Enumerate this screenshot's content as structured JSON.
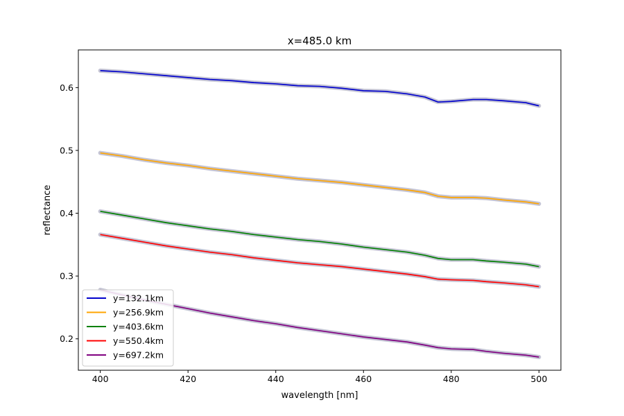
{
  "chart_data": {
    "type": "line",
    "title": "x=485.0 km",
    "xlabel": "wavelength [nm]",
    "ylabel": "reflectance",
    "xlim": [
      395,
      505
    ],
    "ylim": [
      0.15,
      0.66
    ],
    "xticks": [
      400,
      420,
      440,
      460,
      480,
      500
    ],
    "xtick_labels": [
      "400",
      "420",
      "440",
      "460",
      "480",
      "500"
    ],
    "yticks": [
      0.2,
      0.3,
      0.4,
      0.5,
      0.6
    ],
    "ytick_labels": [
      "0.2",
      "0.3",
      "0.4",
      "0.5",
      "0.6"
    ],
    "grid": false,
    "legend_position": "lower-left",
    "uncertainty_band_color": "#c4c4d4",
    "series": [
      {
        "name": "y=132.1km",
        "color": "#0000cc",
        "x": [
          400,
          405,
          410,
          415,
          420,
          425,
          430,
          435,
          440,
          445,
          450,
          455,
          460,
          465,
          470,
          474,
          477,
          480,
          485,
          488,
          492,
          497,
          500
        ],
        "y": [
          0.627,
          0.625,
          0.622,
          0.619,
          0.616,
          0.613,
          0.611,
          0.608,
          0.606,
          0.603,
          0.602,
          0.599,
          0.595,
          0.594,
          0.59,
          0.585,
          0.577,
          0.578,
          0.581,
          0.581,
          0.579,
          0.576,
          0.571
        ]
      },
      {
        "name": "y=256.9km",
        "color": "#ffa500",
        "x": [
          400,
          405,
          410,
          415,
          420,
          425,
          430,
          435,
          440,
          445,
          450,
          455,
          460,
          465,
          470,
          474,
          477,
          480,
          485,
          488,
          492,
          497,
          500
        ],
        "y": [
          0.496,
          0.491,
          0.485,
          0.48,
          0.476,
          0.471,
          0.467,
          0.463,
          0.459,
          0.455,
          0.452,
          0.449,
          0.445,
          0.441,
          0.437,
          0.433,
          0.427,
          0.425,
          0.425,
          0.424,
          0.421,
          0.418,
          0.415
        ]
      },
      {
        "name": "y=403.6km",
        "color": "#008000",
        "x": [
          400,
          405,
          410,
          415,
          420,
          425,
          430,
          435,
          440,
          445,
          450,
          455,
          460,
          465,
          470,
          474,
          477,
          480,
          485,
          488,
          492,
          497,
          500
        ],
        "y": [
          0.403,
          0.397,
          0.391,
          0.385,
          0.38,
          0.375,
          0.371,
          0.366,
          0.362,
          0.358,
          0.355,
          0.351,
          0.346,
          0.342,
          0.338,
          0.333,
          0.328,
          0.326,
          0.326,
          0.324,
          0.322,
          0.319,
          0.315
        ]
      },
      {
        "name": "y=550.4km",
        "color": "#ff0000",
        "x": [
          400,
          405,
          410,
          415,
          420,
          425,
          430,
          435,
          440,
          445,
          450,
          455,
          460,
          465,
          470,
          474,
          477,
          480,
          485,
          488,
          492,
          497,
          500
        ],
        "y": [
          0.366,
          0.36,
          0.354,
          0.348,
          0.343,
          0.338,
          0.334,
          0.329,
          0.325,
          0.321,
          0.318,
          0.315,
          0.311,
          0.307,
          0.303,
          0.299,
          0.295,
          0.294,
          0.293,
          0.291,
          0.289,
          0.286,
          0.283
        ]
      },
      {
        "name": "y=697.2km",
        "color": "#800080",
        "x": [
          400,
          405,
          410,
          415,
          420,
          425,
          430,
          435,
          440,
          445,
          450,
          455,
          460,
          465,
          470,
          474,
          477,
          480,
          485,
          488,
          492,
          497,
          500
        ],
        "y": [
          0.278,
          0.27,
          0.262,
          0.255,
          0.248,
          0.241,
          0.235,
          0.229,
          0.224,
          0.218,
          0.213,
          0.208,
          0.203,
          0.199,
          0.195,
          0.19,
          0.186,
          0.184,
          0.183,
          0.18,
          0.177,
          0.174,
          0.171
        ]
      }
    ]
  }
}
